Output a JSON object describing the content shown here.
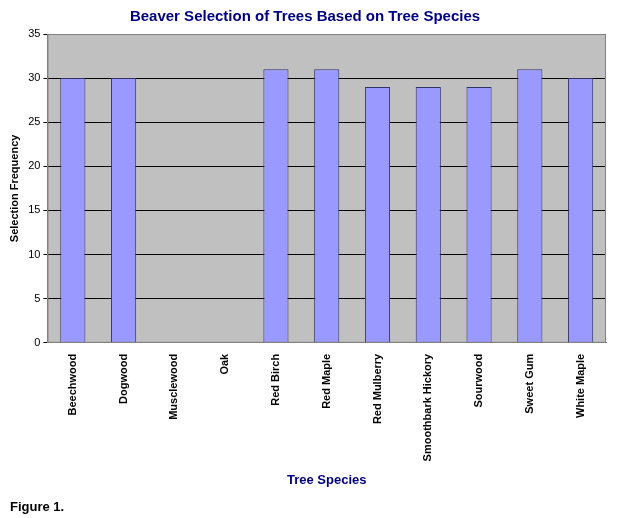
{
  "chart_data": {
    "type": "bar",
    "title": "Beaver Selection of Trees Based on Tree Species",
    "x_label": "Tree Species",
    "y_label": "Selection Frequency",
    "annotation": "Figure 1.",
    "categories": [
      "Beechwood",
      "Dogwood",
      "Musclewood",
      "Oak",
      "Red Birch",
      "Red Maple",
      "Red Mulberry",
      "Smoothbark Hickory",
      "Sourwood",
      "Sweet Gum",
      "White Maple"
    ],
    "values": [
      30,
      30,
      0,
      0,
      31,
      31,
      29,
      29,
      29,
      31,
      30
    ],
    "color": "#9999ff",
    "ylim": [
      0,
      35
    ],
    "yticks": [
      0,
      5,
      10,
      15,
      20,
      25,
      30,
      35
    ],
    "grid": true
  }
}
